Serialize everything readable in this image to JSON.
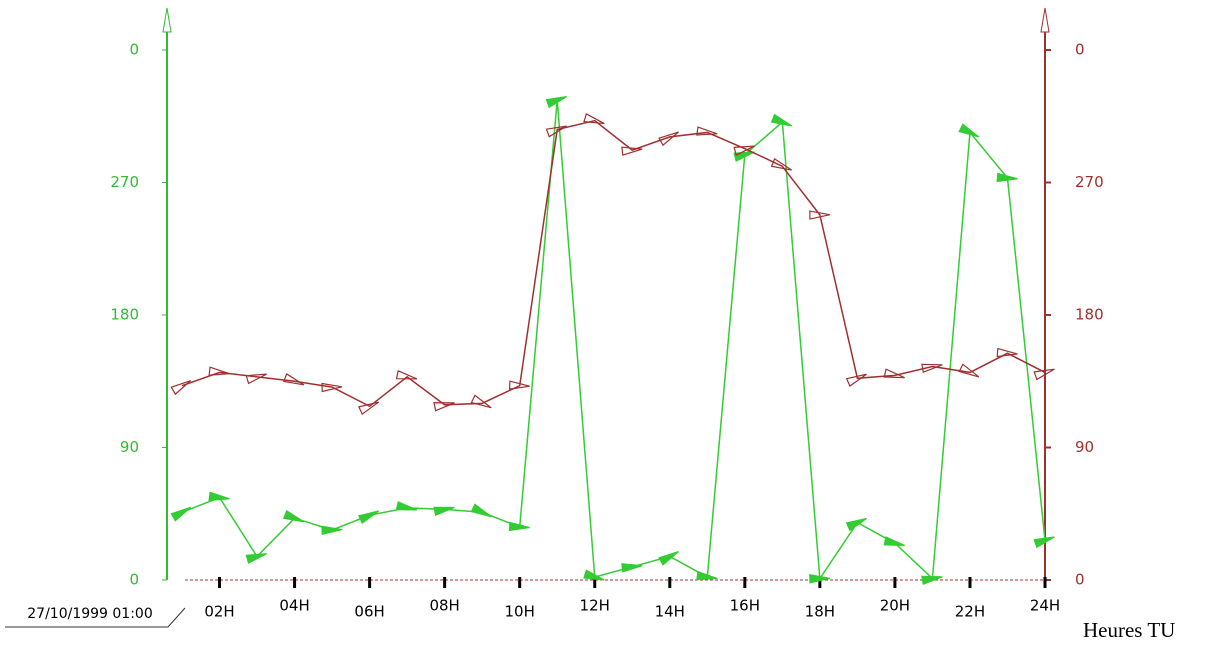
{
  "chart_data": {
    "type": "line",
    "date_label": "27/10/1999 01:00",
    "x_label": "Heures TU",
    "x": [
      1,
      2,
      3,
      4,
      5,
      6,
      7,
      8,
      9,
      10,
      11,
      12,
      13,
      14,
      15,
      16,
      17,
      18,
      19,
      20,
      21,
      22,
      23,
      24
    ],
    "xlim": [
      0.6,
      24
    ],
    "xticks": [
      {
        "value": 2,
        "label": "02H"
      },
      {
        "value": 4,
        "label": "04H"
      },
      {
        "value": 6,
        "label": "06H"
      },
      {
        "value": 8,
        "label": "08H"
      },
      {
        "value": 10,
        "label": "10H"
      },
      {
        "value": 12,
        "label": "12H"
      },
      {
        "value": 14,
        "label": "14H"
      },
      {
        "value": 16,
        "label": "16H"
      },
      {
        "value": 18,
        "label": "18H"
      },
      {
        "value": 20,
        "label": "20H"
      },
      {
        "value": 22,
        "label": "22H"
      },
      {
        "value": 24,
        "label": "24H"
      }
    ],
    "ylim": [
      0,
      360
    ],
    "yticks": [
      0,
      90,
      180,
      270,
      {
        "value": 360,
        "label": "0"
      }
    ],
    "y2lim": [
      0,
      360
    ],
    "y2ticks": [
      0,
      90,
      180,
      270,
      {
        "value": 360,
        "label": "0"
      }
    ],
    "y_color": "#33bb33",
    "y2_color": "#a03030",
    "series": [
      {
        "color": "#33cc33",
        "axis": "y",
        "values": [
          46,
          56,
          16,
          42,
          34,
          44,
          49,
          48,
          46,
          36,
          326,
          2,
          9,
          16,
          2,
          289,
          311,
          1,
          39,
          25,
          1,
          304,
          273,
          27
        ]
      },
      {
        "color": "#a03030",
        "axis": "y2",
        "values": [
          132,
          141,
          138,
          135,
          131,
          118,
          138,
          119,
          120,
          132,
          306,
          312,
          292,
          301,
          304,
          293,
          281,
          248,
          137,
          139,
          145,
          141,
          154,
          141
        ]
      }
    ]
  }
}
